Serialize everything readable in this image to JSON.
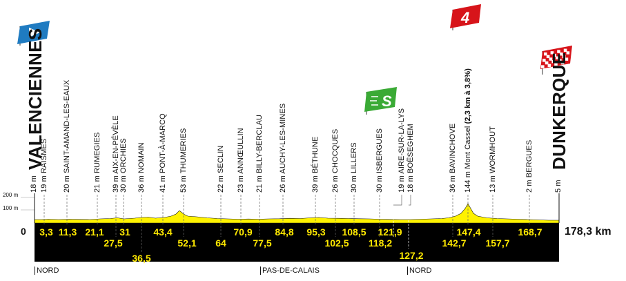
{
  "start_city": "VALENCIENNES",
  "start_altitude": "18 m",
  "finish_city": "DUNKERQUE",
  "finish_altitude": "5 m",
  "total_distance": "178,3 km",
  "zero_label": "0",
  "altitude_axis": [
    "200 m",
    "100 m"
  ],
  "climb_category": "4",
  "sprint_letter": "S",
  "colors": {
    "profile": "#fff200",
    "base": "#000000",
    "climb_flag": "#d7141a",
    "sprint_flag": "#3aaa35",
    "start_flag": "#1f7bc1",
    "finish_flag": "#d7141a"
  },
  "waypoints": [
    {
      "label": "19 m RAISMES",
      "km": "3,3",
      "bold": false
    },
    {
      "label": "20 m SAINT-AMAND-LES-EAUX",
      "km": "11,3",
      "bold": false
    },
    {
      "label": "21 m RUMEGIES",
      "km": "21,1",
      "bold": false
    },
    {
      "label": "39 m AIX-EN-PÉVÈLE",
      "km": "27,5",
      "bold": false
    },
    {
      "label": "30 m ORCHIES",
      "km": "31",
      "bold": false
    },
    {
      "label": "36 m NOMAIN",
      "km": "36,5",
      "bold": false
    },
    {
      "label": "41 m PONT-À-MARCQ",
      "km": "43,4",
      "bold": false
    },
    {
      "label": "53 m THUMERIES",
      "km": "52,1",
      "bold": false
    },
    {
      "label": "22 m SECLIN",
      "km": "64",
      "bold": false
    },
    {
      "label": "23 m ANNŒULLIN",
      "km": "70,9",
      "bold": false
    },
    {
      "label": "21 m BILLY-BERCLAU",
      "km": "77,5",
      "bold": false
    },
    {
      "label": "26 m AUCHY-LES-MINES",
      "km": "84,8",
      "bold": false
    },
    {
      "label": "39 m BÉTHUNE",
      "km": "95,3",
      "bold": false
    },
    {
      "label": "26 m CHOCQUES",
      "km": "102,5",
      "bold": false
    },
    {
      "label": "30 m LILLERS",
      "km": "108,5",
      "bold": false
    },
    {
      "label": "30 m ISBERGUES",
      "km": "118,2",
      "bold": false
    },
    {
      "label": "19 m AIRE-SUR-LA-LYS",
      "km": "121,9",
      "bold": false
    },
    {
      "label": "18 m BOËSEGHEM",
      "km": "127,2",
      "bold": false
    },
    {
      "label": "36 m BAVINCHOVE",
      "km": "142,7",
      "bold": false
    },
    {
      "label": "144 m Mont Cassel ",
      "label_bold": "(2,3 km à 3,8%)",
      "km": "147,4",
      "bold": false
    },
    {
      "label": "13 m WORMHOUT",
      "km": "157,7",
      "bold": false
    },
    {
      "label": "2 m BERGUES",
      "km": "168,7",
      "bold": false
    }
  ],
  "regions": [
    "NORD",
    "PAS-DE-CALAIS",
    "NORD"
  ]
}
